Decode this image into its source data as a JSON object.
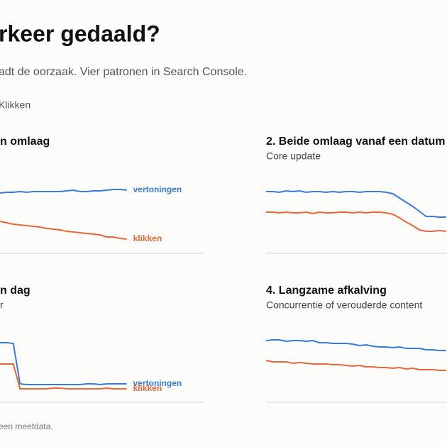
{
  "header": {
    "title": "rkeer gedaald?",
    "subtitle": "adt de oorzaak. Vier patronen in Search Console.",
    "legend": "Klikken"
  },
  "panels": [
    {
      "title": "n omlaag",
      "ylim": [
        0,
        100
      ],
      "series": [
        {
          "label": "vertoningen",
          "color": "#3a7bd5",
          "values": [
            85,
            86,
            86,
            87,
            86,
            87,
            87,
            87,
            87,
            87,
            88,
            89,
            87,
            87,
            88,
            88,
            89,
            90,
            90,
            89
          ]
        },
        {
          "label": "klikken",
          "color": "#e8683a",
          "values": [
            45,
            43,
            41,
            40,
            39,
            38,
            37,
            35,
            34,
            33,
            31,
            30,
            29,
            28,
            27,
            26,
            23,
            23,
            21,
            20
          ]
        }
      ]
    },
    {
      "title": "2. Beide omlaag vanaf een datum",
      "subtitle": "Core update",
      "ylim": [
        0,
        100
      ],
      "series": [
        {
          "color": "#3a7bd5",
          "values": [
            87,
            87,
            86,
            88,
            87,
            88,
            86,
            87,
            87,
            86,
            87,
            86,
            87,
            87,
            86,
            87,
            87,
            87,
            86,
            84,
            78,
            72,
            66,
            59,
            52,
            52,
            51,
            51
          ]
        },
        {
          "color": "#e8683a",
          "values": [
            58,
            58,
            57,
            58,
            57,
            57,
            58,
            56,
            58,
            57,
            57,
            58,
            58,
            57,
            58,
            57,
            58,
            58,
            57,
            55,
            50,
            44,
            39,
            33,
            31,
            31,
            32,
            31
          ]
        }
      ]
    },
    {
      "title": "n dag",
      "subtitle": "r",
      "ylim": [
        0,
        100
      ],
      "series": [
        {
          "label": "vertoningen",
          "color": "#3a7bd5",
          "values": [
            84,
            84,
            83,
            26,
            25,
            25,
            25,
            25,
            25,
            25,
            25,
            25,
            25,
            26,
            26,
            25,
            26,
            26,
            26,
            26
          ]
        },
        {
          "label": "klikken",
          "color": "#e8683a",
          "values": [
            54,
            54,
            54,
            19,
            19,
            19,
            19,
            19,
            20,
            20,
            19,
            19,
            19,
            19,
            19,
            19,
            20,
            19,
            19,
            19
          ]
        }
      ]
    },
    {
      "title": "4. Langzame afkalving",
      "subtitle": "Concurrentie of verouderde content",
      "ylim": [
        0,
        100
      ],
      "series": [
        {
          "color": "#3a7bd5",
          "values": [
            87,
            88,
            88,
            86,
            87,
            87,
            86,
            87,
            84,
            84,
            83,
            83,
            83,
            82,
            80,
            81,
            79,
            78,
            78,
            77,
            78,
            76,
            76,
            76,
            74,
            74,
            73,
            73
          ]
        },
        {
          "color": "#e8683a",
          "values": [
            59,
            57,
            57,
            57,
            55,
            56,
            55,
            54,
            54,
            54,
            53,
            53,
            52,
            51,
            52,
            50,
            50,
            49,
            49,
            48,
            49,
            47,
            48,
            46,
            46,
            46,
            45,
            45
          ]
        }
      ]
    }
  ],
  "footer": "een meetdata."
}
